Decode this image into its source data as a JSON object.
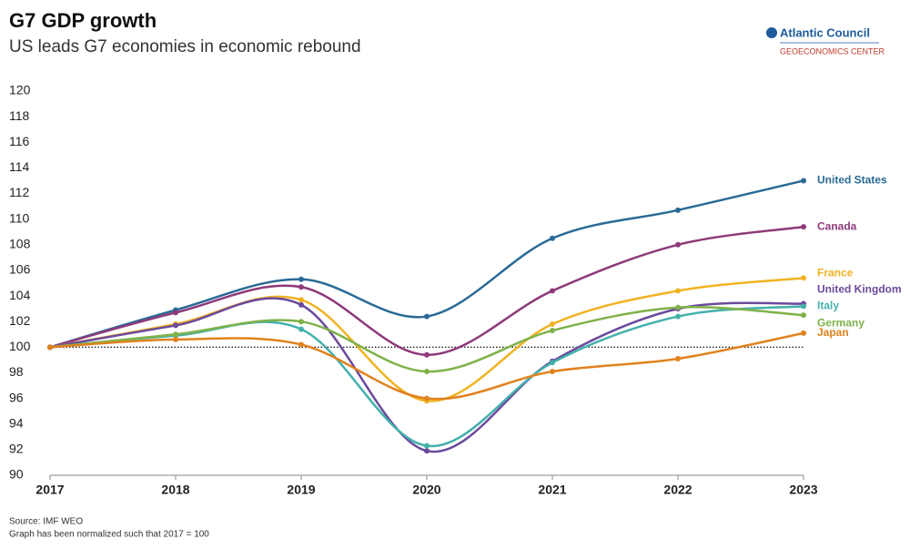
{
  "chart_data": {
    "type": "line",
    "title": "G7 GDP growth",
    "subtitle": "US leads G7 economies in economic rebound",
    "brand": "Atlantic Council",
    "brand_sub": "GEOECONOMICS CENTER",
    "notes": [
      "Source: IMF WEO",
      "Graph has been normalized such that 2017 = 100"
    ],
    "x": [
      2017,
      2018,
      2019,
      2020,
      2021,
      2022,
      2023
    ],
    "xlim": [
      2017,
      2023
    ],
    "xticks": [
      2017,
      2018,
      2019,
      2020,
      2021,
      2022,
      2023
    ],
    "ylim": [
      90,
      120
    ],
    "yticks": [
      90,
      92,
      94,
      96,
      98,
      100,
      102,
      104,
      106,
      108,
      110,
      112,
      114,
      116,
      118,
      120
    ],
    "baseline": 100,
    "series": [
      {
        "name": "United States",
        "color": "#2a6a96",
        "values": [
          100,
          102.9,
          105.3,
          102.4,
          108.5,
          110.7,
          113.0
        ]
      },
      {
        "name": "Canada",
        "color": "#8e3a7a",
        "values": [
          100,
          102.7,
          104.7,
          99.4,
          104.4,
          108.0,
          109.4
        ]
      },
      {
        "name": "France",
        "color": "#f0b323",
        "values": [
          100,
          101.8,
          103.7,
          95.8,
          101.8,
          104.4,
          105.4
        ]
      },
      {
        "name": "United Kingdom",
        "color": "#6b4a9c",
        "values": [
          100,
          101.7,
          103.3,
          91.9,
          98.9,
          103.0,
          103.4
        ]
      },
      {
        "name": "Italy",
        "color": "#44b0ab",
        "values": [
          100,
          100.9,
          101.4,
          92.3,
          98.8,
          102.4,
          103.2
        ]
      },
      {
        "name": "Germany",
        "color": "#7fb24a",
        "values": [
          100,
          101.0,
          102.0,
          98.1,
          101.3,
          103.1,
          102.5
        ]
      },
      {
        "name": "Japan",
        "color": "#e0821e",
        "values": [
          100,
          100.6,
          100.2,
          96.0,
          98.1,
          99.1,
          101.1
        ]
      }
    ]
  }
}
